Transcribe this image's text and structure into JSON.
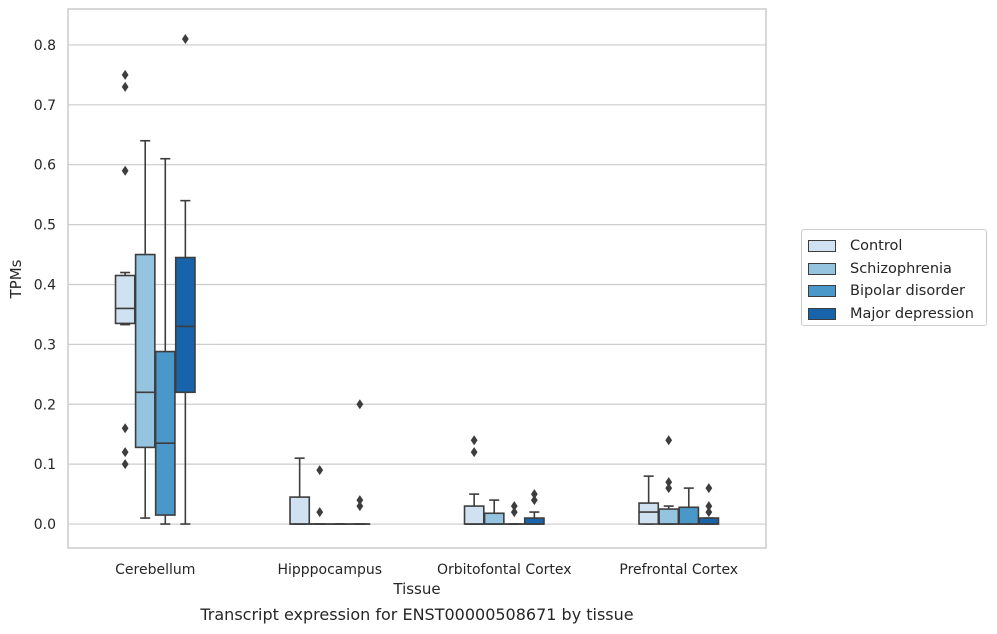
{
  "chart_data": {
    "type": "box",
    "title": "",
    "xlabel": "Tissue",
    "ylabel": "TPMs",
    "ylim": [
      -0.04,
      0.86
    ],
    "yticks": [
      0.0,
      0.1,
      0.2,
      0.3,
      0.4,
      0.5,
      0.6,
      0.7,
      0.8
    ],
    "ytick_labels": [
      "0.0",
      "0.1",
      "0.2",
      "0.3",
      "0.4",
      "0.5",
      "0.6",
      "0.7",
      "0.8"
    ],
    "grid": "horizontal",
    "legend_position": "right",
    "categories": [
      "Cerebellum",
      "Hipppocampus",
      "Orbitofontal Cortex",
      "Prefrontal Cortex"
    ],
    "series": [
      {
        "name": "Control",
        "color": "#d0e1f2",
        "boxes": [
          {
            "q1": 0.335,
            "median": 0.36,
            "q3": 0.415,
            "whisker_low": 0.333,
            "whisker_high": 0.42,
            "outliers": [
              0.75,
              0.73,
              0.59,
              0.16,
              0.12,
              0.1
            ]
          },
          {
            "q1": 0.0,
            "median": 0.0,
            "q3": 0.045,
            "whisker_low": 0.0,
            "whisker_high": 0.11,
            "outliers": []
          },
          {
            "q1": 0.0,
            "median": 0.0,
            "q3": 0.03,
            "whisker_low": 0.0,
            "whisker_high": 0.05,
            "outliers": [
              0.14,
              0.12
            ]
          },
          {
            "q1": 0.0,
            "median": 0.02,
            "q3": 0.035,
            "whisker_low": 0.0,
            "whisker_high": 0.08,
            "outliers": []
          }
        ]
      },
      {
        "name": "Schizophrenia",
        "color": "#94c4df",
        "boxes": [
          {
            "q1": 0.128,
            "median": 0.22,
            "q3": 0.45,
            "whisker_low": 0.01,
            "whisker_high": 0.64,
            "outliers": []
          },
          {
            "q1": 0.0,
            "median": 0.0,
            "q3": 0.0,
            "whisker_low": 0.0,
            "whisker_high": 0.0,
            "outliers": [
              0.09,
              0.02
            ]
          },
          {
            "q1": 0.0,
            "median": 0.0,
            "q3": 0.018,
            "whisker_low": 0.0,
            "whisker_high": 0.04,
            "outliers": []
          },
          {
            "q1": 0.0,
            "median": 0.0,
            "q3": 0.025,
            "whisker_low": 0.0,
            "whisker_high": 0.03,
            "outliers": [
              0.14,
              0.07,
              0.06
            ]
          }
        ]
      },
      {
        "name": "Bipolar disorder",
        "color": "#4a98c9",
        "boxes": [
          {
            "q1": 0.015,
            "median": 0.135,
            "q3": 0.288,
            "whisker_low": 0.0,
            "whisker_high": 0.61,
            "outliers": []
          },
          {
            "q1": 0.0,
            "median": 0.0,
            "q3": 0.0,
            "whisker_low": 0.0,
            "whisker_high": 0.0,
            "outliers": []
          },
          {
            "q1": 0.0,
            "median": 0.0,
            "q3": 0.0,
            "whisker_low": 0.0,
            "whisker_high": 0.0,
            "outliers": [
              0.03,
              0.02
            ]
          },
          {
            "q1": 0.0,
            "median": 0.0,
            "q3": 0.028,
            "whisker_low": 0.0,
            "whisker_high": 0.06,
            "outliers": []
          }
        ]
      },
      {
        "name": "Major depression",
        "color": "#1764ab",
        "boxes": [
          {
            "q1": 0.22,
            "median": 0.33,
            "q3": 0.445,
            "whisker_low": 0.0,
            "whisker_high": 0.54,
            "outliers": [
              0.81
            ]
          },
          {
            "q1": 0.0,
            "median": 0.0,
            "q3": 0.0,
            "whisker_low": 0.0,
            "whisker_high": 0.0,
            "outliers": [
              0.2,
              0.04,
              0.03
            ]
          },
          {
            "q1": 0.0,
            "median": 0.0,
            "q3": 0.01,
            "whisker_low": 0.0,
            "whisker_high": 0.02,
            "outliers": [
              0.05,
              0.04
            ]
          },
          {
            "q1": 0.0,
            "median": 0.0,
            "q3": 0.01,
            "whisker_low": 0.0,
            "whisker_high": 0.01,
            "outliers": [
              0.06,
              0.03,
              0.02
            ]
          }
        ]
      }
    ]
  },
  "caption": "Transcript expression for ENST00000508671 by tissue"
}
